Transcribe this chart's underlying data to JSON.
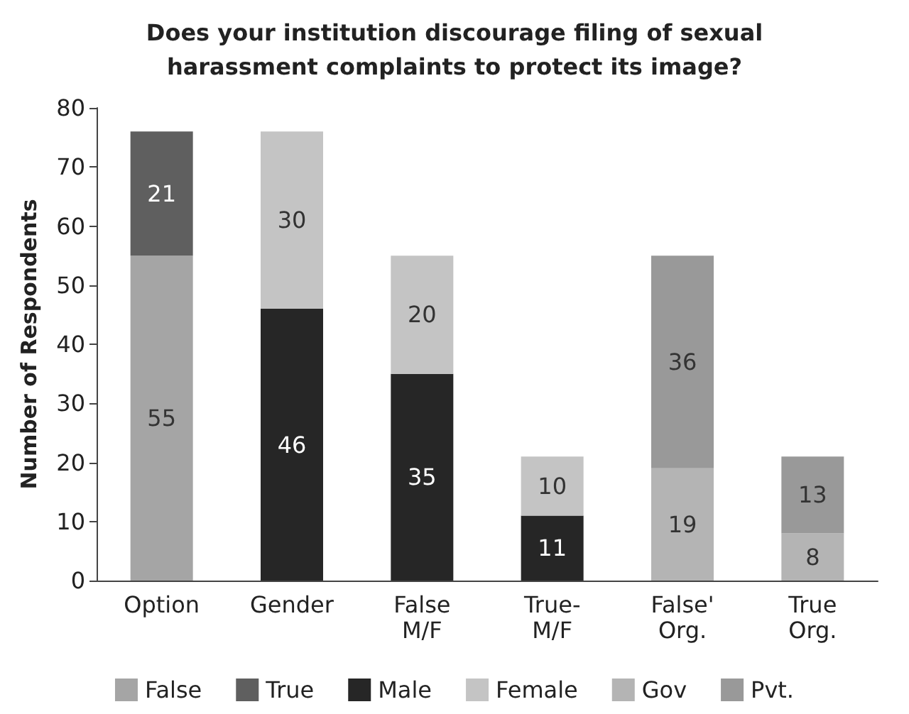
{
  "chart_data": {
    "type": "bar",
    "title": "Does your institution discourage filing of sexual\nharassment complaints to protect its image?",
    "ylabel": "Number of Respondents",
    "categories": [
      "Option",
      "Gender",
      "False\nM/F",
      "True-\nM/F",
      "False'\nOrg.",
      "True\nOrg."
    ],
    "series": [
      {
        "name": "False",
        "color": "#a5a5a5",
        "values": [
          55,
          null,
          null,
          null,
          null,
          null
        ]
      },
      {
        "name": "True",
        "color": "#5f5f5f",
        "values": [
          21,
          null,
          null,
          null,
          null,
          null
        ]
      },
      {
        "name": "Male",
        "color": "#262626",
        "values": [
          null,
          46,
          35,
          11,
          null,
          null
        ]
      },
      {
        "name": "Female",
        "color": "#c4c4c4",
        "values": [
          null,
          30,
          20,
          10,
          null,
          null
        ]
      },
      {
        "name": "Gov",
        "color": "#b4b4b4",
        "values": [
          null,
          null,
          null,
          null,
          19,
          8
        ]
      },
      {
        "name": "Pvt.",
        "color": "#999999",
        "values": [
          null,
          null,
          null,
          null,
          36,
          13
        ]
      }
    ],
    "stacked": true,
    "ylim": [
      0,
      80
    ],
    "yticks": [
      0,
      10,
      20,
      30,
      40,
      50,
      60,
      70,
      80
    ],
    "grid": false,
    "legend": "bottom",
    "data_labels": true
  }
}
